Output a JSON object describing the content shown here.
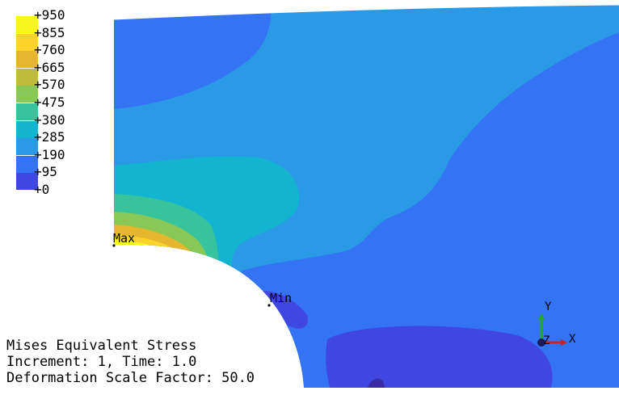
{
  "legend": {
    "entries": [
      {
        "label": "+950",
        "color": "#f7f71c"
      },
      {
        "label": "+855",
        "color": "#fbd32b"
      },
      {
        "label": "+760",
        "color": "#e6b72e"
      },
      {
        "label": "+665",
        "color": "#bfbc3c"
      },
      {
        "label": "+570",
        "color": "#8ac856"
      },
      {
        "label": "+475",
        "color": "#37c49c"
      },
      {
        "label": "+380",
        "color": "#13b4cf"
      },
      {
        "label": "+285",
        "color": "#2b9ae6"
      },
      {
        "label": "+190",
        "color": "#3573f5"
      },
      {
        "label": "+95",
        "color": "#4046e0"
      },
      {
        "label": "+0",
        "color": "#3b2ca6"
      }
    ]
  },
  "markers": {
    "max_label": "Max",
    "min_label": "Min"
  },
  "info": {
    "line1": "Mises Equivalent Stress",
    "line2": "Increment: 1, Time: 1.0",
    "line3": "Deformation Scale Factor: 50.0"
  },
  "triad": {
    "y_label": "Y",
    "z_label": "Z",
    "x_label": "X",
    "y_color": "#22aa22",
    "x_color": "#cc2222",
    "z_color": "#1a1a5a"
  }
}
